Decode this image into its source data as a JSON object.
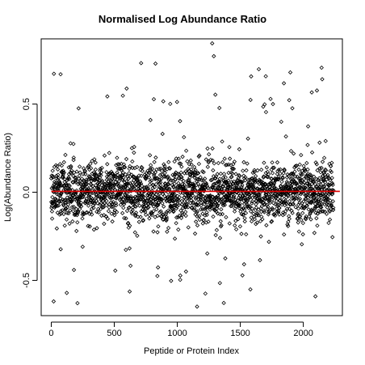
{
  "chart_data": {
    "type": "scatter",
    "title": "Normalised Log Abundance Ratio",
    "xlabel": "Peptide or Protein Index",
    "ylabel": "Log(Abundance Ratio)",
    "xlim": [
      -80,
      2310
    ],
    "ylim": [
      -0.7,
      0.87
    ],
    "x_ticks": [
      0,
      500,
      1000,
      1500,
      2000
    ],
    "y_ticks": [
      -0.5,
      0.0,
      0.5
    ],
    "x_tick_labels": [
      "0",
      "500",
      "1000",
      "1500",
      "2000"
    ],
    "y_tick_labels": [
      "-0.5",
      "0.0",
      "0.5"
    ],
    "reference_line": {
      "y": 0.005,
      "x_range": [
        0,
        2290
      ],
      "color": "#e00000"
    },
    "point_count": 2240,
    "point_marker": "diamond-open",
    "grid": false,
    "legend": "none",
    "colors": {
      "points": "#000000",
      "reference_line": "#e00000"
    }
  }
}
